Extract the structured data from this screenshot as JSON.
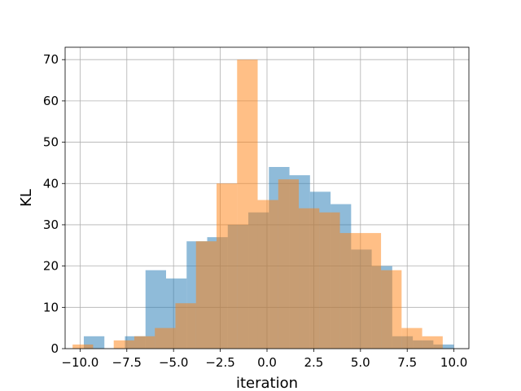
{
  "chart_data": {
    "type": "histogram",
    "title": "",
    "xlabel": "iteration",
    "ylabel": "KL",
    "xlim": [
      -10.8,
      10.8
    ],
    "ylim": [
      0,
      73
    ],
    "grid": true,
    "x_ticks": [
      -10.0,
      -7.5,
      -5.0,
      -2.5,
      0.0,
      2.5,
      5.0,
      7.5,
      10.0
    ],
    "x_tick_labels": [
      "−10.0",
      "−7.5",
      "−5.0",
      "−2.5",
      "0.0",
      "2.5",
      "5.0",
      "7.5",
      "10.0"
    ],
    "y_ticks": [
      0,
      10,
      20,
      30,
      40,
      50,
      60,
      70
    ],
    "y_tick_labels": [
      "0",
      "10",
      "20",
      "30",
      "40",
      "50",
      "60",
      "70"
    ],
    "series": [
      {
        "color": "#1f77b4",
        "opacity": 0.5,
        "bin_edges": [
          -9.8,
          -8.7,
          -7.6,
          -6.5,
          -5.4,
          -4.3,
          -3.2,
          -2.1,
          -1.0,
          0.1,
          1.2,
          2.3,
          3.4,
          4.5,
          5.6,
          6.7,
          7.8,
          8.9,
          10.0
        ],
        "counts": [
          3,
          0,
          3,
          19,
          17,
          26,
          27,
          30,
          33,
          44,
          42,
          38,
          35,
          24,
          20,
          3,
          2,
          1
        ]
      },
      {
        "color": "#ff7f0e",
        "opacity": 0.5,
        "bin_edges": [
          -10.4,
          -9.3,
          -8.2,
          -7.1,
          -6.0,
          -4.9,
          -3.8,
          -2.7,
          -1.6,
          -0.5,
          0.6,
          1.7,
          2.8,
          3.9,
          5.0,
          6.1,
          7.2,
          8.3,
          9.4
        ],
        "counts": [
          1,
          0,
          2,
          3,
          5,
          11,
          26,
          40,
          70,
          36,
          41,
          34,
          33,
          28,
          28,
          19,
          5,
          3
        ]
      }
    ]
  }
}
